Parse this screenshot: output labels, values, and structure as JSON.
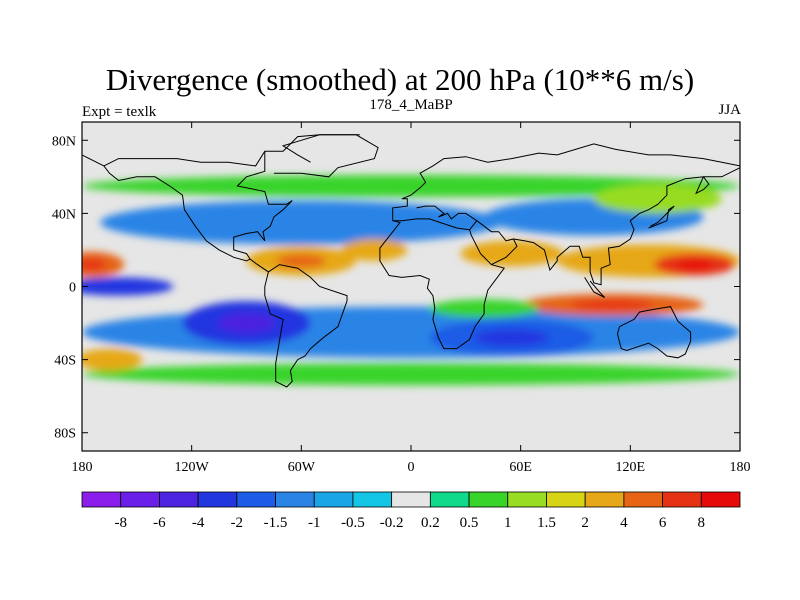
{
  "chart_data": {
    "type": "contour map",
    "title": "Divergence (smoothed) at 200 hPa (10**6 m/s)",
    "left_label": "Expt = texlk",
    "center_label": "178_4_MaBP",
    "right_label": "JJA",
    "xlim": [
      -180,
      180
    ],
    "ylim": [
      -90,
      90
    ],
    "x_ticks": [
      {
        "value": -180,
        "label": "180"
      },
      {
        "value": -120,
        "label": "120W"
      },
      {
        "value": -60,
        "label": "60W"
      },
      {
        "value": 0,
        "label": "0"
      },
      {
        "value": 60,
        "label": "60E"
      },
      {
        "value": 120,
        "label": "120E"
      },
      {
        "value": 180,
        "label": "180"
      }
    ],
    "y_ticks": [
      {
        "value": 80,
        "label": "80N"
      },
      {
        "value": 40,
        "label": "40N"
      },
      {
        "value": 0,
        "label": "0"
      },
      {
        "value": -40,
        "label": "40S"
      },
      {
        "value": -80,
        "label": "80S"
      }
    ],
    "levels": [
      "-8",
      "-6",
      "-4",
      "-2",
      "-1.5",
      "-1",
      "-0.5",
      "-0.2",
      "0.2",
      "0.5",
      "1",
      "1.5",
      "2",
      "4",
      "6",
      "8"
    ],
    "level_values": [
      -8,
      -6,
      -4,
      -2,
      -1.5,
      -1,
      -0.5,
      -0.2,
      0.2,
      0.5,
      1,
      1.5,
      2,
      4,
      6,
      8
    ],
    "colors": [
      "#8c1eec",
      "#6a20e8",
      "#4c24e0",
      "#2236e0",
      "#1d5ce6",
      "#2a84e6",
      "#1aa6e6",
      "#14c6e6",
      "#e6e6e6",
      "#0fd98a",
      "#38d42a",
      "#98dc24",
      "#d6d414",
      "#e6a818",
      "#e66414",
      "#e63214",
      "#e60a0a"
    ],
    "features": [
      {
        "name": "tropical-divergence-asia",
        "lon": 155,
        "lat": 12,
        "rx": 22,
        "ry": 6,
        "value": 6
      },
      {
        "name": "tropical-divergence-asia-broad",
        "lon": 130,
        "lat": 14,
        "rx": 50,
        "ry": 9,
        "value": 2.5
      },
      {
        "name": "tropical-divergence-west",
        "lon": -175,
        "lat": 12,
        "rx": 18,
        "ry": 7,
        "value": 4
      },
      {
        "name": "tropical-divergence-americas",
        "lon": -60,
        "lat": 14,
        "rx": 30,
        "ry": 8,
        "value": 3
      },
      {
        "name": "tropical-divergence-africa",
        "lon": -20,
        "lat": 20,
        "rx": 18,
        "ry": 6,
        "value": 2
      },
      {
        "name": "tropical-divergence-arabia",
        "lon": 55,
        "lat": 18,
        "rx": 28,
        "ry": 7,
        "value": 2
      },
      {
        "name": "equatorial-divergence-south",
        "lon": 110,
        "lat": -10,
        "rx": 50,
        "ry": 6,
        "value": 4
      },
      {
        "name": "equatorial-divergence-south-tail",
        "lon": 40,
        "lat": -12,
        "rx": 30,
        "ry": 5,
        "value": 0.8
      },
      {
        "name": "southern-convergence-west",
        "lon": -90,
        "lat": -20,
        "rx": 35,
        "ry": 12,
        "value": -3
      },
      {
        "name": "southern-convergence-indian",
        "lon": 55,
        "lat": -28,
        "rx": 45,
        "ry": 10,
        "value": -2
      },
      {
        "name": "southern-convergence-band",
        "lon": 0,
        "lat": -25,
        "rx": 180,
        "ry": 14,
        "value": -1.2
      },
      {
        "name": "equatorial-convergence",
        "lon": -160,
        "lat": 0,
        "rx": 30,
        "ry": 5,
        "value": -2.5
      },
      {
        "name": "midlat-north-convergence",
        "lon": -60,
        "lat": 35,
        "rx": 110,
        "ry": 12,
        "value": -1.3
      },
      {
        "name": "midlat-north-convergence-east",
        "lon": 100,
        "lat": 38,
        "rx": 60,
        "ry": 10,
        "value": -1.2
      },
      {
        "name": "north-divergence-band",
        "lon": 0,
        "lat": 55,
        "rx": 180,
        "ry": 6,
        "value": 0.8
      },
      {
        "name": "north-divergence-east",
        "lon": 135,
        "lat": 48,
        "rx": 35,
        "ry": 8,
        "value": 1.3
      },
      {
        "name": "southern-divergence-band",
        "lon": 0,
        "lat": -48,
        "rx": 180,
        "ry": 6,
        "value": 0.8
      },
      {
        "name": "southern-divergence-west",
        "lon": -165,
        "lat": -40,
        "rx": 18,
        "ry": 6,
        "value": 2.2
      }
    ],
    "coastlines": [
      [
        [
          -180,
          72
        ],
        [
          -168,
          66
        ],
        [
          -160,
          70
        ],
        [
          -140,
          70
        ],
        [
          -128,
          70
        ],
        [
          -115,
          68
        ],
        [
          -100,
          68
        ],
        [
          -85,
          66
        ],
        [
          -80,
          74
        ],
        [
          -70,
          74
        ],
        [
          -62,
          82
        ],
        [
          -50,
          83
        ],
        [
          -28,
          83
        ]
      ],
      [
        [
          -80,
          74
        ],
        [
          -80,
          63
        ],
        [
          -90,
          60
        ],
        [
          -95,
          55
        ],
        [
          -80,
          52
        ],
        [
          -78,
          45
        ],
        [
          -68,
          45
        ],
        [
          -65,
          47
        ],
        [
          -70,
          42
        ],
        [
          -75,
          38
        ],
        [
          -77,
          33
        ],
        [
          -81,
          30
        ],
        [
          -80,
          25
        ],
        [
          -84,
          30
        ],
        [
          -90,
          29
        ],
        [
          -97,
          27
        ],
        [
          -97,
          20
        ],
        [
          -90,
          18
        ],
        [
          -88,
          15
        ],
        [
          -84,
          12
        ],
        [
          -78,
          8
        ],
        [
          -80,
          0
        ],
        [
          -80,
          -5
        ],
        [
          -77,
          -15
        ],
        [
          -70,
          -18
        ],
        [
          -72,
          -30
        ],
        [
          -74,
          -42
        ],
        [
          -74,
          -52
        ],
        [
          -68,
          -55
        ],
        [
          -65,
          -52
        ],
        [
          -66,
          -46
        ],
        [
          -62,
          -40
        ],
        [
          -58,
          -38
        ],
        [
          -55,
          -34
        ],
        [
          -48,
          -28
        ],
        [
          -40,
          -22
        ],
        [
          -35,
          -8
        ],
        [
          -35,
          -5
        ],
        [
          -50,
          0
        ],
        [
          -55,
          5
        ],
        [
          -62,
          10
        ],
        [
          -72,
          12
        ],
        [
          -78,
          8
        ]
      ],
      [
        [
          -168,
          66
        ],
        [
          -165,
          62
        ],
        [
          -160,
          58
        ],
        [
          -150,
          60
        ],
        [
          -140,
          60
        ],
        [
          -132,
          55
        ],
        [
          -125,
          50
        ],
        [
          -124,
          42
        ],
        [
          -118,
          33
        ],
        [
          -112,
          25
        ],
        [
          -105,
          20
        ],
        [
          -97,
          16
        ],
        [
          -90,
          14
        ],
        [
          -88,
          15
        ]
      ],
      [
        [
          -10,
          36
        ],
        [
          -10,
          43
        ],
        [
          -2,
          44
        ],
        [
          -2,
          48
        ],
        [
          -5,
          48
        ],
        [
          0,
          50
        ],
        [
          5,
          54
        ],
        [
          8,
          57
        ],
        [
          5,
          62
        ],
        [
          12,
          66
        ],
        [
          18,
          70
        ],
        [
          30,
          71
        ],
        [
          42,
          68
        ],
        [
          55,
          70
        ],
        [
          70,
          73
        ],
        [
          80,
          72
        ],
        [
          100,
          78
        ],
        [
          112,
          75
        ],
        [
          130,
          72
        ],
        [
          142,
          72
        ],
        [
          160,
          70
        ],
        [
          170,
          68
        ],
        [
          180,
          66
        ]
      ],
      [
        [
          -10,
          36
        ],
        [
          -6,
          35
        ],
        [
          -17,
          21
        ],
        [
          -17,
          14
        ],
        [
          -12,
          6
        ],
        [
          -5,
          5
        ],
        [
          5,
          6
        ],
        [
          10,
          4
        ],
        [
          9,
          -1
        ],
        [
          12,
          -5
        ],
        [
          13,
          -12
        ],
        [
          12,
          -18
        ],
        [
          15,
          -28
        ],
        [
          18,
          -34
        ],
        [
          25,
          -34
        ],
        [
          32,
          -29
        ],
        [
          35,
          -22
        ],
        [
          40,
          -15
        ],
        [
          40,
          -10
        ],
        [
          42,
          -2
        ],
        [
          51,
          10
        ],
        [
          44,
          12
        ],
        [
          38,
          18
        ],
        [
          33,
          28
        ],
        [
          32,
          31
        ]
      ],
      [
        [
          32,
          31
        ],
        [
          25,
          32
        ],
        [
          10,
          37
        ],
        [
          3,
          37
        ],
        [
          -5,
          36
        ],
        [
          -10,
          36
        ]
      ],
      [
        [
          32,
          31
        ],
        [
          36,
          36
        ],
        [
          30,
          40
        ],
        [
          26,
          40
        ],
        [
          22,
          37
        ],
        [
          20,
          40
        ],
        [
          15,
          38
        ],
        [
          18,
          40
        ],
        [
          13,
          44
        ],
        [
          8,
          44
        ],
        [
          3,
          43
        ]
      ],
      [
        [
          36,
          36
        ],
        [
          44,
          30
        ],
        [
          48,
          30
        ],
        [
          52,
          25
        ],
        [
          56,
          26
        ],
        [
          58,
          22
        ],
        [
          52,
          16
        ],
        [
          44,
          12
        ]
      ],
      [
        [
          56,
          26
        ],
        [
          62,
          25
        ],
        [
          67,
          24
        ],
        [
          73,
          20
        ],
        [
          76,
          9
        ],
        [
          80,
          14
        ],
        [
          80,
          16
        ],
        [
          87,
          22
        ],
        [
          92,
          22
        ],
        [
          94,
          16
        ],
        [
          98,
          16
        ],
        [
          98,
          8
        ],
        [
          100,
          2
        ],
        [
          104,
          1
        ],
        [
          104,
          10
        ],
        [
          109,
          12
        ],
        [
          108,
          21
        ],
        [
          114,
          22
        ],
        [
          120,
          26
        ],
        [
          122,
          31
        ],
        [
          120,
          36
        ],
        [
          125,
          40
        ],
        [
          130,
          42
        ],
        [
          135,
          45
        ],
        [
          140,
          50
        ],
        [
          140,
          55
        ],
        [
          150,
          59
        ],
        [
          160,
          60
        ],
        [
          163,
          56
        ],
        [
          160,
          53
        ],
        [
          156,
          51
        ],
        [
          160,
          60
        ],
        [
          170,
          60
        ],
        [
          180,
          65
        ]
      ],
      [
        [
          114,
          -22
        ],
        [
          113,
          -26
        ],
        [
          115,
          -34
        ],
        [
          118,
          -35
        ],
        [
          124,
          -33
        ],
        [
          130,
          -31
        ],
        [
          135,
          -34
        ],
        [
          140,
          -38
        ],
        [
          146,
          -39
        ],
        [
          150,
          -37
        ],
        [
          153,
          -30
        ],
        [
          153,
          -25
        ],
        [
          146,
          -19
        ],
        [
          142,
          -11
        ],
        [
          136,
          -12
        ],
        [
          130,
          -13
        ],
        [
          125,
          -14
        ],
        [
          122,
          -18
        ],
        [
          114,
          -22
        ]
      ],
      [
        [
          -75,
          62
        ],
        [
          -60,
          62
        ],
        [
          -45,
          60
        ],
        [
          -40,
          65
        ],
        [
          -20,
          70
        ],
        [
          -18,
          76
        ],
        [
          -30,
          83
        ],
        [
          -50,
          83
        ],
        [
          -60,
          80
        ],
        [
          -70,
          77
        ],
        [
          -62,
          72
        ],
        [
          -55,
          68
        ]
      ],
      [
        [
          95,
          5
        ],
        [
          100,
          -3
        ],
        [
          106,
          -6
        ],
        [
          104,
          -4
        ],
        [
          98,
          3
        ]
      ],
      [
        [
          130,
          32
        ],
        [
          135,
          34
        ],
        [
          140,
          36
        ],
        [
          141,
          42
        ],
        [
          144,
          44
        ],
        [
          140,
          40
        ],
        [
          135,
          35
        ],
        [
          131,
          33
        ]
      ]
    ]
  }
}
